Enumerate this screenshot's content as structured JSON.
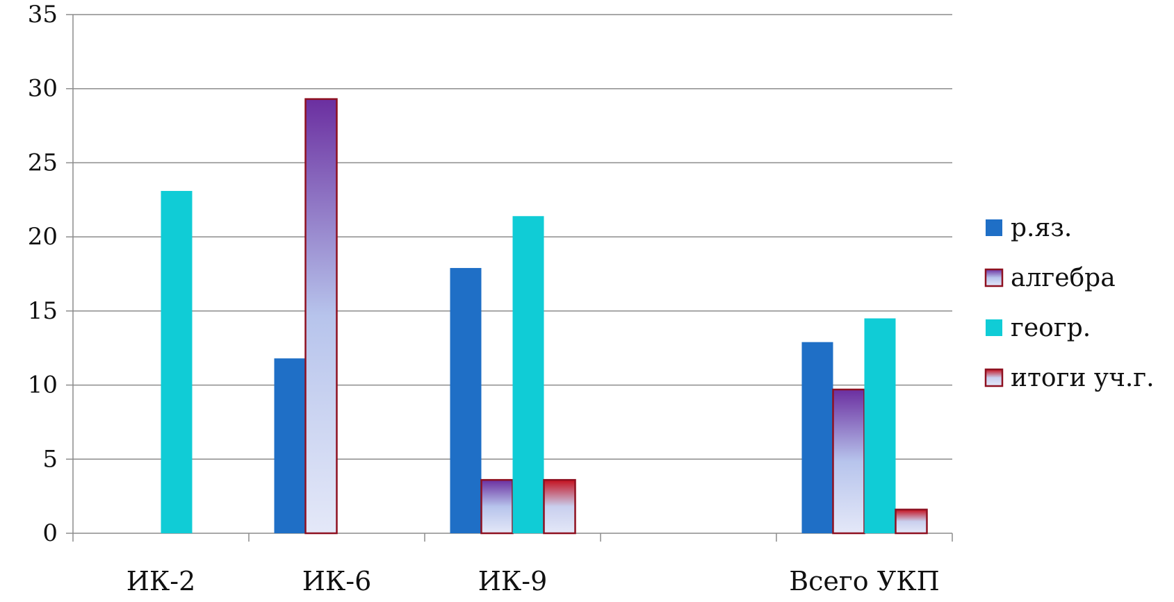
{
  "chart_data": {
    "type": "bar",
    "categories": [
      "ИК-2",
      "ИК-6",
      "ИК-9",
      "",
      "Всего УКП"
    ],
    "series": [
      {
        "name": "р.яз.",
        "values": [
          0,
          11.8,
          17.9,
          0,
          12.9
        ],
        "color": "#1f6fc6",
        "style": "solid"
      },
      {
        "name": "алгебра",
        "values": [
          0,
          29.3,
          3.6,
          0,
          9.7
        ],
        "color": "#6b2fa0",
        "style": "gradient-purple"
      },
      {
        "name": "геогр.",
        "values": [
          23.1,
          0,
          21.4,
          0,
          14.5
        ],
        "color": "#10ccd6",
        "style": "solid"
      },
      {
        "name": "итоги уч.г.",
        "values": [
          0,
          0,
          3.6,
          0,
          1.6
        ],
        "color": "#b8101e",
        "style": "gradient-red"
      }
    ],
    "ylim": [
      0,
      35
    ],
    "yticks": [
      0,
      5,
      10,
      15,
      20,
      25,
      30,
      35
    ],
    "grid": true,
    "legend_position": "right"
  }
}
